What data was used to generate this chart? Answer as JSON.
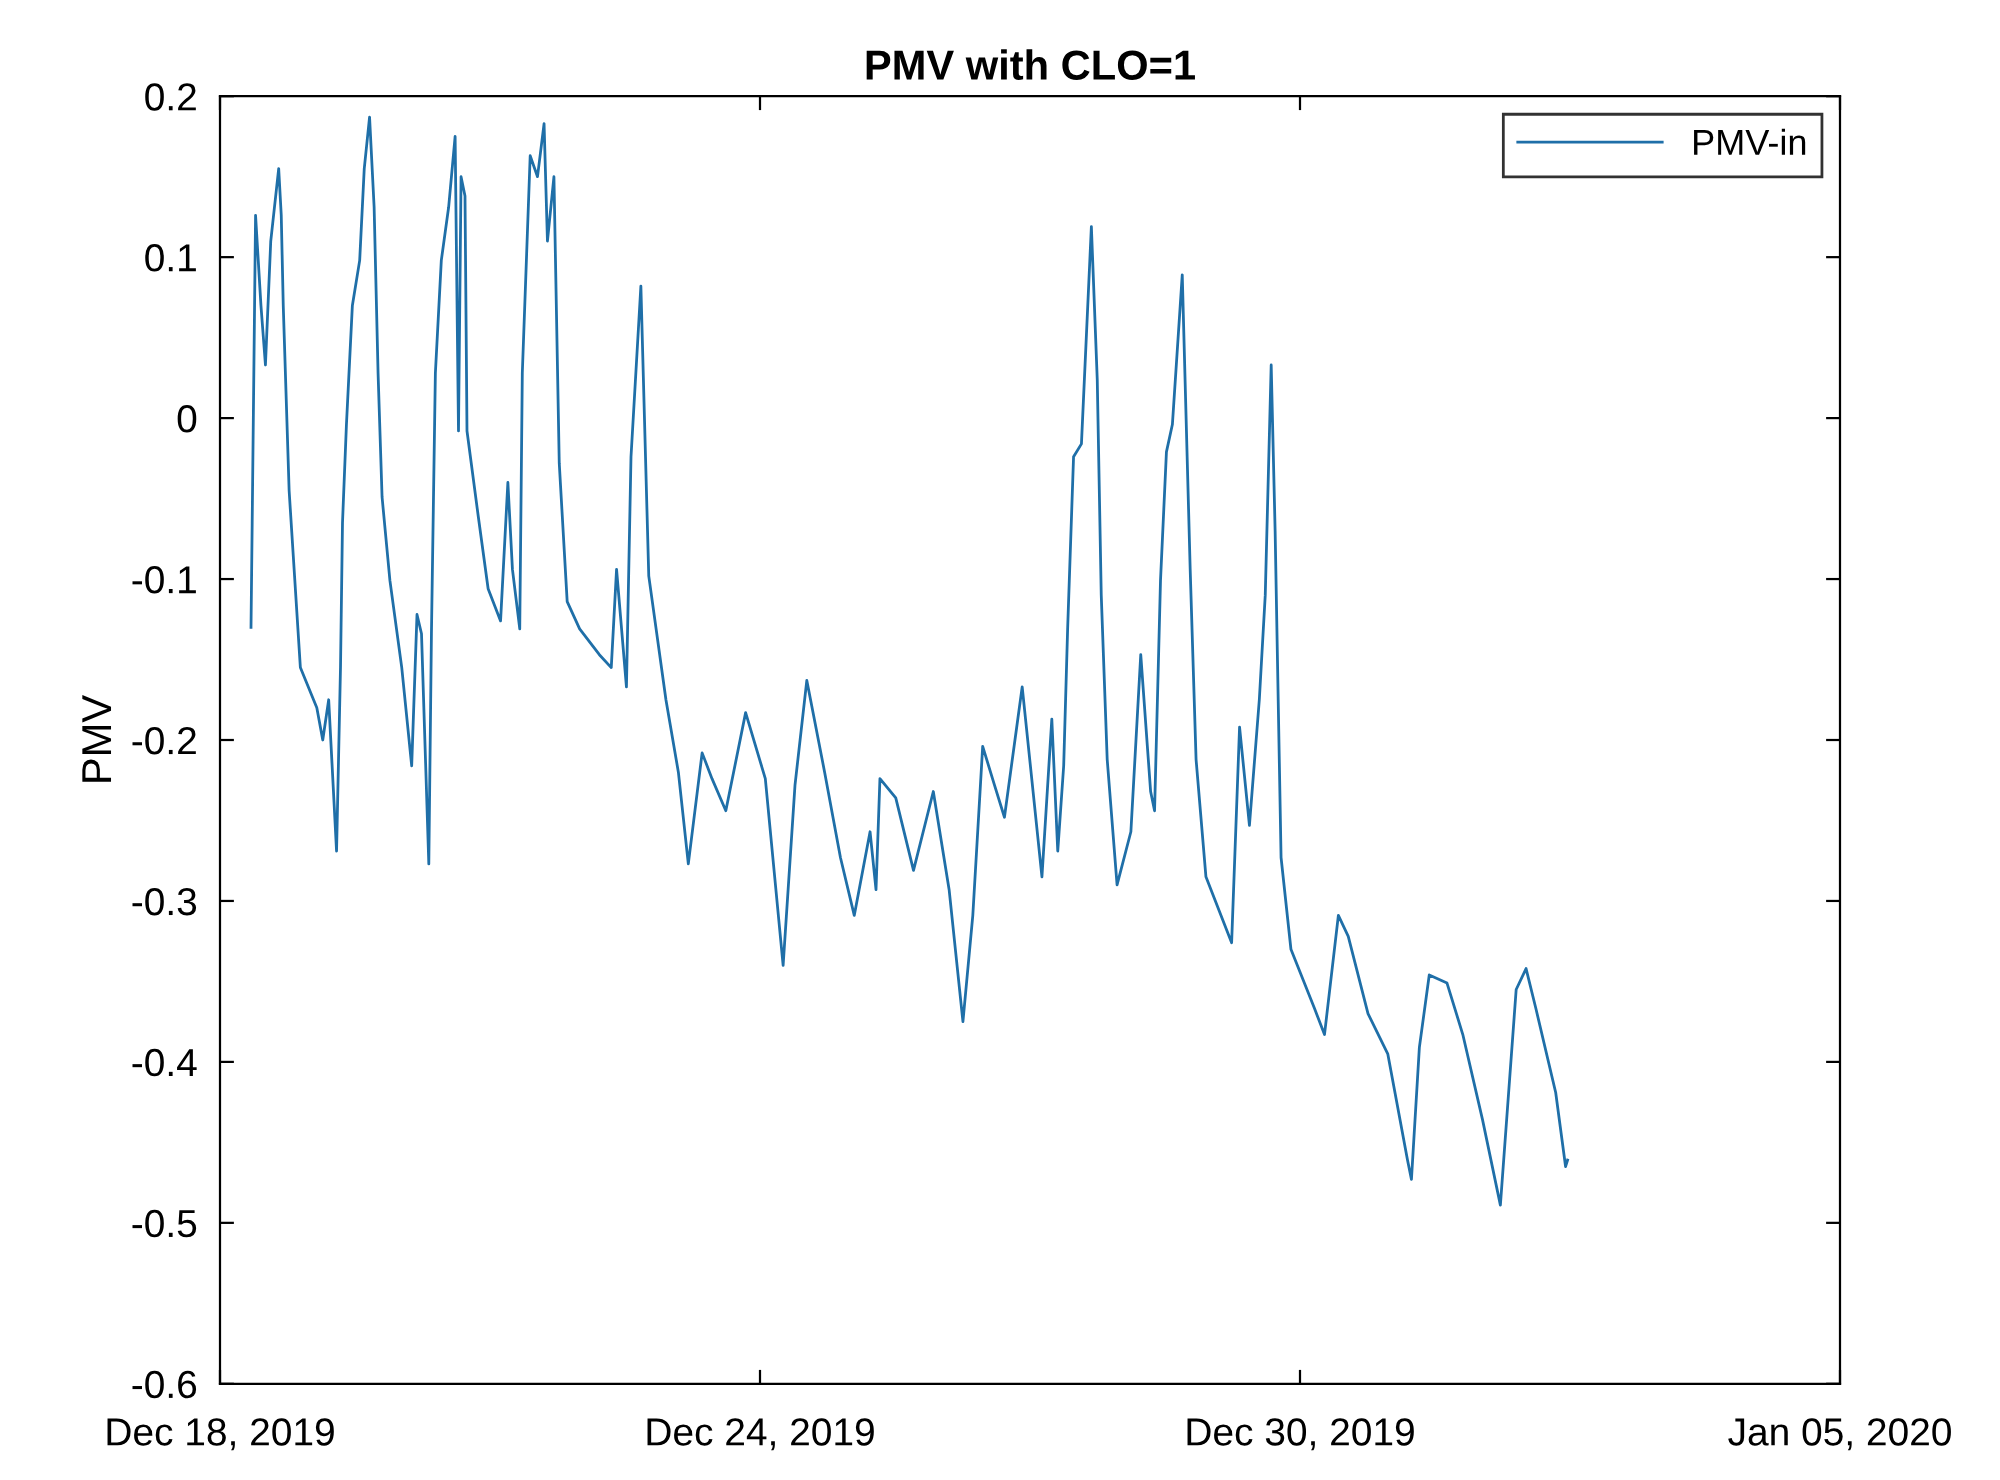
{
  "chart_data": {
    "type": "line",
    "title": "PMV with CLO=1",
    "ylabel": "PMV",
    "xlim": [
      "2019-12-18",
      "2020-01-05"
    ],
    "xticks": [
      {
        "value": "2019-12-18",
        "label": "Dec 18, 2019"
      },
      {
        "value": "2019-12-24",
        "label": "Dec 24, 2019"
      },
      {
        "value": "2019-12-30",
        "label": "Dec 30, 2019"
      },
      {
        "value": "2020-01-05",
        "label": "Jan 05, 2020"
      }
    ],
    "ylim": [
      -0.6,
      0.2
    ],
    "yticks": [
      -0.6,
      -0.5,
      -0.4,
      -0.3,
      -0.2,
      -0.1,
      0,
      0.1,
      0.2
    ],
    "grid": false,
    "legend": "top right",
    "marker": "none",
    "line_style": "solid",
    "x": [
      "2019-12-18T08:16",
      "2019-12-18T08:35",
      "2019-12-18T09:29",
      "2019-12-18T10:55",
      "2019-12-18T12:07",
      "2019-12-18T13:32",
      "2019-12-18T15:39",
      "2019-12-18T16:20",
      "2019-12-18T16:52",
      "2019-12-18T18:26",
      "2019-12-18T21:26",
      "2019-12-19T01:49",
      "2019-12-19T03:24",
      "2019-12-19T04:59",
      "2019-12-19T07:05",
      "2019-12-19T08:08",
      "2019-12-19T08:40",
      "2019-12-19T09:43",
      "2019-12-19T11:18",
      "2019-12-19T13:15",
      "2019-12-19T14:28",
      "2019-12-19T15:53",
      "2019-12-19T17:06",
      "2019-12-19T18:09",
      "2019-12-19T19:13",
      "2019-12-19T21:19",
      "2019-12-20T00:28",
      "2019-12-20T03:07",
      "2019-12-20T04:32",
      "2019-12-20T05:44",
      "2019-12-20T07:41",
      "2019-12-20T08:23",
      "2019-12-20T09:26",
      "2019-12-20T11:01",
      "2019-12-20T12:58",
      "2019-12-20T14:42",
      "2019-12-20T15:36",
      "2019-12-20T16:17",
      "2019-12-20T17:20",
      "2019-12-20T17:52",
      "2019-12-20T20:52",
      "2019-12-20T23:30",
      "2019-12-21T02:49",
      "2019-12-21T04:46",
      "2019-12-21T05:59",
      "2019-12-21T07:56",
      "2019-12-21T08:37",
      "2019-12-21T10:43",
      "2019-12-21T12:40",
      "2019-12-21T14:25",
      "2019-12-21T15:19",
      "2019-12-21T17:03",
      "2019-12-21T18:28",
      "2019-12-21T20:35",
      "2019-12-21T23:54",
      "2019-12-22T05:10",
      "2019-12-22T08:20",
      "2019-12-22T09:45",
      "2019-12-22T12:23",
      "2019-12-22T13:36",
      "2019-12-22T16:14",
      "2019-12-22T18:20",
      "2019-12-22T22:55",
      "2019-12-23T02:14",
      "2019-12-23T04:53",
      "2019-12-23T08:34",
      "2019-12-23T11:12",
      "2019-12-23T14:53",
      "2019-12-23T20:10",
      "2019-12-24T01:25",
      "2019-12-24T06:10",
      "2019-12-24T09:20",
      "2019-12-24T12:29",
      "2019-12-24T17:14",
      "2019-12-24T21:27",
      "2019-12-25T01:08",
      "2019-12-25T05:21",
      "2019-12-25T06:56",
      "2019-12-25T07:59",
      "2019-12-25T12:12",
      "2019-12-25T16:56",
      "2019-12-25T22:13",
      "2019-12-26T02:26",
      "2019-12-26T06:07",
      "2019-12-26T08:45",
      "2019-12-26T11:23",
      "2019-12-26T14:32",
      "2019-12-26T17:11",
      "2019-12-26T21:55",
      "2019-12-27T03:11",
      "2019-12-27T05:49",
      "2019-12-27T07:24",
      "2019-12-27T08:59",
      "2019-12-27T10:02",
      "2019-12-27T11:37",
      "2019-12-27T13:43",
      "2019-12-27T16:22",
      "2019-12-27T17:56",
      "2019-12-27T19:00",
      "2019-12-27T20:35",
      "2019-12-27T23:13",
      "2019-12-28T02:54",
      "2019-12-28T05:32",
      "2019-12-28T08:10",
      "2019-12-28T09:13",
      "2019-12-28T10:48",
      "2019-12-28T12:23",
      "2019-12-28T13:58",
      "2019-12-28T16:36",
      "2019-12-28T18:43",
      "2019-12-28T20:17",
      "2019-12-28T22:55",
      "2019-12-29T05:46",
      "2019-12-29T07:53",
      "2019-12-29T10:31",
      "2019-12-29T13:09",
      "2019-12-29T14:44",
      "2019-12-29T16:19",
      "2019-12-29T17:22",
      "2019-12-29T18:57",
      "2019-12-29T21:35",
      "2019-12-30T03:54",
      "2019-12-30T06:32",
      "2019-12-30T10:14",
      "2019-12-30T12:52",
      "2019-12-30T18:08",
      "2019-12-30T23:24",
      "2019-12-31T04:40",
      "2019-12-31T05:43",
      "2019-12-31T07:50",
      "2019-12-31T10:28",
      "2019-12-31T15:12",
      "2019-12-31T19:25",
      "2020-01-01T00:41",
      "2020-01-01T05:26",
      "2020-01-01T09:39",
      "2020-01-01T12:17",
      "2020-01-01T14:55",
      "2020-01-01T20:11",
      "2020-01-01T22:49",
      "2020-01-01T23:21"
    ],
    "series": [
      {
        "name": "PMV-in",
        "color": "#1f6fa8",
        "values": [
          -0.13,
          -0.065,
          0.126,
          0.07,
          0.033,
          0.11,
          0.155,
          0.126,
          0.07,
          -0.045,
          -0.155,
          -0.18,
          -0.2,
          -0.175,
          -0.269,
          -0.155,
          -0.065,
          -0.004,
          0.07,
          0.098,
          0.155,
          0.187,
          0.131,
          0.028,
          -0.049,
          -0.101,
          -0.155,
          -0.216,
          -0.122,
          -0.134,
          -0.277,
          -0.134,
          0.028,
          0.098,
          0.131,
          0.175,
          -0.008,
          0.15,
          0.138,
          -0.008,
          -0.061,
          -0.106,
          -0.126,
          -0.04,
          -0.094,
          -0.131,
          0.028,
          0.163,
          0.15,
          0.183,
          0.11,
          0.15,
          -0.028,
          -0.114,
          -0.131,
          -0.147,
          -0.155,
          -0.094,
          -0.167,
          -0.024,
          0.082,
          -0.098,
          -0.175,
          -0.22,
          -0.277,
          -0.208,
          -0.224,
          -0.244,
          -0.183,
          -0.224,
          -0.34,
          -0.228,
          -0.163,
          -0.22,
          -0.273,
          -0.309,
          -0.257,
          -0.293,
          -0.224,
          -0.236,
          -0.281,
          -0.232,
          -0.293,
          -0.375,
          -0.309,
          -0.204,
          -0.228,
          -0.248,
          -0.167,
          -0.285,
          -0.187,
          -0.269,
          -0.216,
          -0.131,
          -0.024,
          -0.016,
          0.119,
          0.024,
          -0.11,
          -0.212,
          -0.29,
          -0.257,
          -0.147,
          -0.232,
          -0.244,
          -0.101,
          -0.021,
          -0.004,
          0.089,
          -0.094,
          -0.212,
          -0.285,
          -0.326,
          -0.192,
          -0.253,
          -0.175,
          -0.11,
          0.033,
          -0.07,
          -0.273,
          -0.33,
          -0.367,
          -0.383,
          -0.309,
          -0.322,
          -0.37,
          -0.395,
          -0.461,
          -0.473,
          -0.391,
          -0.346,
          -0.351,
          -0.383,
          -0.436,
          -0.489,
          -0.355,
          -0.342,
          -0.367,
          -0.419,
          -0.465,
          -0.461
        ]
      }
    ]
  }
}
